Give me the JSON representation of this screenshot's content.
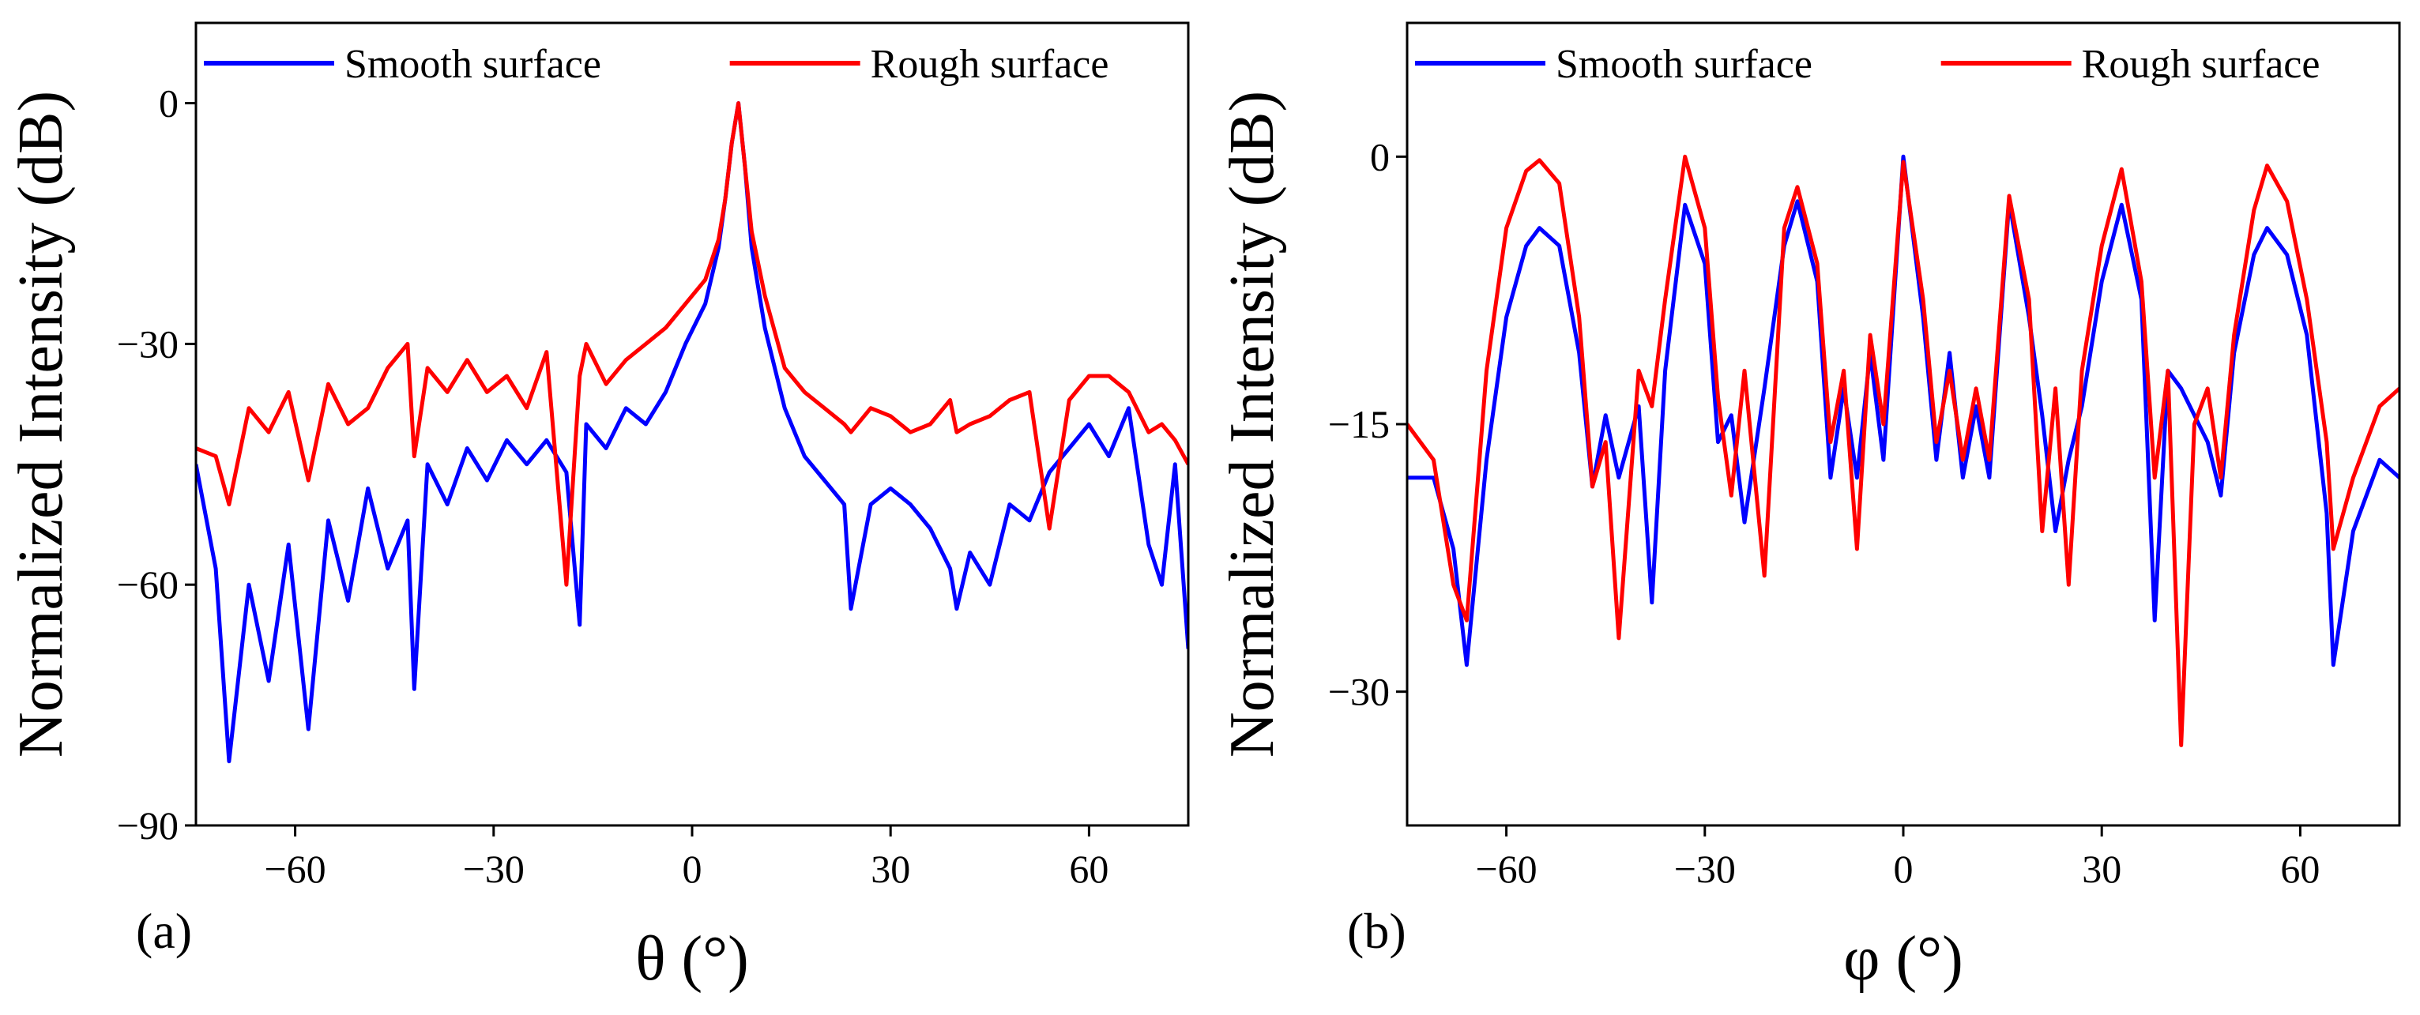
{
  "chart_data": [
    {
      "type": "line",
      "panel_label": "(a)",
      "x_label": "θ (°)",
      "y_label": "Normalized Intensity (dB)",
      "xlim": [
        -75,
        75
      ],
      "ylim": [
        -90,
        10
      ],
      "xticks": [
        {
          "value": -60,
          "label": "−60"
        },
        {
          "value": -30,
          "label": "−30"
        },
        0,
        30,
        60
      ],
      "yticks": [
        {
          "value": -90,
          "label": "−90"
        },
        {
          "value": -60,
          "label": "−60"
        },
        {
          "value": -30,
          "label": "−30"
        },
        0
      ],
      "x": [
        -75,
        -72,
        -70,
        -67,
        -64,
        -61,
        -58,
        -55,
        -52,
        -49,
        -46,
        -43,
        -42,
        -40,
        -37,
        -34,
        -31,
        -28,
        -25,
        -22,
        -19,
        -17,
        -16,
        -13,
        -10,
        -7,
        -4,
        -1,
        2,
        4,
        5,
        6,
        7,
        8,
        9,
        11,
        14,
        17,
        20,
        23,
        24,
        27,
        30,
        33,
        36,
        39,
        40,
        42,
        45,
        48,
        51,
        54,
        57,
        60,
        63,
        66,
        69,
        71,
        73,
        75
      ],
      "series": [
        {
          "name": "Smooth surface",
          "color": "#0000ff",
          "values": [
            -45,
            -58,
            -82,
            -60,
            -72,
            -55,
            -78,
            -52,
            -62,
            -48,
            -58,
            -52,
            -73,
            -45,
            -50,
            -43,
            -47,
            -42,
            -45,
            -42,
            -46,
            -65,
            -40,
            -43,
            -38,
            -40,
            -36,
            -30,
            -25,
            -18,
            -12,
            -5,
            0,
            -8,
            -18,
            -28,
            -38,
            -44,
            -47,
            -50,
            -63,
            -50,
            -48,
            -50,
            -53,
            -58,
            -63,
            -56,
            -60,
            -50,
            -52,
            -46,
            -43,
            -40,
            -44,
            -38,
            -55,
            -60,
            -45,
            -68
          ]
        },
        {
          "name": "Rough surface",
          "color": "#ff0000",
          "values": [
            -43,
            -44,
            -50,
            -38,
            -41,
            -36,
            -47,
            -35,
            -40,
            -38,
            -33,
            -30,
            -44,
            -33,
            -36,
            -32,
            -36,
            -34,
            -38,
            -31,
            -60,
            -34,
            -30,
            -35,
            -32,
            -30,
            -28,
            -25,
            -22,
            -17,
            -12,
            -5,
            0,
            -8,
            -16,
            -24,
            -33,
            -36,
            -38,
            -40,
            -41,
            -38,
            -39,
            -41,
            -40,
            -37,
            -41,
            -40,
            -39,
            -37,
            -36,
            -53,
            -37,
            -34,
            -34,
            -36,
            -41,
            -40,
            -42,
            -45
          ]
        }
      ]
    },
    {
      "type": "line",
      "panel_label": "(b)",
      "x_label": "φ (°)",
      "y_label": "Normalized Intensity (dB)",
      "xlim": [
        -75,
        75
      ],
      "ylim": [
        -37.5,
        7.5
      ],
      "xticks": [
        {
          "value": -60,
          "label": "−60"
        },
        {
          "value": -30,
          "label": "−30"
        },
        0,
        30,
        60
      ],
      "yticks": [
        {
          "value": -30,
          "label": "−30"
        },
        {
          "value": -15,
          "label": "−15"
        },
        0
      ],
      "x": [
        -75,
        -71,
        -68,
        -66,
        -63,
        -60,
        -57,
        -55,
        -52,
        -49,
        -47,
        -45,
        -43,
        -40,
        -38,
        -36,
        -33,
        -30,
        -28,
        -26,
        -24,
        -21,
        -18,
        -16,
        -13,
        -11,
        -9,
        -7,
        -5,
        -3,
        0,
        3,
        5,
        7,
        9,
        11,
        13,
        16,
        19,
        21,
        23,
        25,
        27,
        30,
        33,
        36,
        38,
        40,
        42,
        44,
        46,
        48,
        50,
        53,
        55,
        58,
        61,
        64,
        65,
        68,
        72,
        75
      ],
      "series": [
        {
          "name": "Smooth surface",
          "color": "#0000ff",
          "values": [
            -18,
            -18,
            -22,
            -28.5,
            -17,
            -9,
            -5,
            -4,
            -5,
            -11,
            -18.5,
            -14.5,
            -18,
            -14,
            -25,
            -12,
            -2.7,
            -6,
            -16,
            -14.5,
            -20.5,
            -13,
            -5,
            -2.5,
            -7,
            -18,
            -13,
            -18,
            -11,
            -17,
            0,
            -9,
            -17,
            -11,
            -18,
            -14,
            -18,
            -2.5,
            -9,
            -14.5,
            -21,
            -17,
            -14,
            -7,
            -2.7,
            -8,
            -26,
            -12,
            -13,
            -14.5,
            -16,
            -19,
            -11,
            -5.5,
            -4,
            -5.5,
            -10,
            -20,
            -28.5,
            -21,
            -17,
            -18
          ]
        },
        {
          "name": "Rough surface",
          "color": "#ff0000",
          "values": [
            -15,
            -17,
            -24,
            -26,
            -12,
            -4,
            -0.8,
            -0.2,
            -1.5,
            -9,
            -18.5,
            -16,
            -27,
            -12,
            -14,
            -8,
            0,
            -4,
            -13.5,
            -19,
            -12,
            -23.5,
            -4,
            -1.7,
            -6,
            -16,
            -12,
            -22,
            -10,
            -15,
            -0.3,
            -8,
            -16,
            -12,
            -17,
            -13,
            -17,
            -2.2,
            -8,
            -21,
            -13,
            -24,
            -12,
            -5,
            -0.7,
            -7,
            -18,
            -12,
            -33,
            -15,
            -13,
            -18,
            -10,
            -3,
            -0.5,
            -2.5,
            -8,
            -16,
            -22,
            -18,
            -14,
            -13
          ]
        }
      ]
    }
  ]
}
